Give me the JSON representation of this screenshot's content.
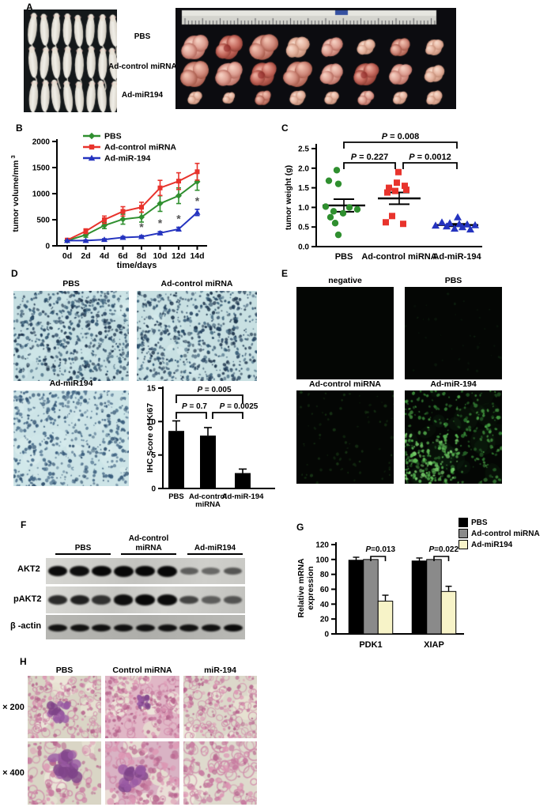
{
  "panels": {
    "a": "A",
    "b": "B",
    "c": "C",
    "d": "D",
    "e": "E",
    "f": "F",
    "g": "G",
    "h": "H"
  },
  "panel_a": {
    "treatment_labels": [
      "PBS",
      "Ad-control miRNA",
      "Ad-miR194"
    ],
    "tumor_rows": 3,
    "tumors_per_row": 8,
    "mice_rows": 3,
    "mice_per_row": 8
  },
  "chart_data": [
    {
      "panel": "B",
      "type": "line",
      "xlabel": "time/days",
      "ylabel": "tumor volume/mm",
      "ylabel_superscript": "3",
      "x": [
        "0d",
        "2d",
        "4d",
        "6d",
        "8d",
        "10d",
        "12d",
        "14d"
      ],
      "ylim": [
        0,
        2000
      ],
      "yticks": [
        0,
        500,
        1000,
        1500,
        2000
      ],
      "legend_position": "top-left",
      "series": [
        {
          "name": "PBS",
          "color": "#2f8f2f",
          "marker": "diamond",
          "values": [
            100,
            210,
            390,
            510,
            550,
            810,
            960,
            1230
          ],
          "errors": [
            20,
            45,
            60,
            95,
            95,
            150,
            150,
            165
          ]
        },
        {
          "name": "Ad-control miRNA",
          "color": "#e8332c",
          "marker": "square",
          "values": [
            110,
            280,
            500,
            660,
            740,
            1110,
            1240,
            1420
          ],
          "errors": [
            20,
            45,
            70,
            90,
            95,
            145,
            160,
            160
          ]
        },
        {
          "name": "Ad-miR-194",
          "color": "#2433bf",
          "marker": "triangle",
          "values": [
            100,
            100,
            120,
            160,
            175,
            245,
            320,
            640
          ],
          "errors": [
            10,
            12,
            15,
            20,
            22,
            28,
            35,
            60
          ]
        }
      ],
      "significance": {
        "symbol": "*",
        "series": "Ad-miR-194",
        "at_x": [
          "8d",
          "10d",
          "12d",
          "14d"
        ]
      }
    },
    {
      "panel": "C",
      "type": "scatter",
      "ylabel": "tumor weight (g)",
      "ylim": [
        0,
        2.5
      ],
      "yticks": [
        "0.0",
        "0.5",
        "1.0",
        "1.5",
        "2.0",
        "2.5"
      ],
      "groups": [
        {
          "name": "PBS",
          "color": "#2f8f2f",
          "marker": "circle",
          "mean": 1.05,
          "sem": 0.16,
          "points": [
            1.95,
            1.68,
            1.6,
            1.02,
            1.0,
            0.95,
            0.9,
            0.85,
            0.75,
            0.6,
            0.3
          ]
        },
        {
          "name": "Ad-control miRNA",
          "color": "#e8332c",
          "marker": "square",
          "mean": 1.23,
          "sem": 0.15,
          "points": [
            1.9,
            1.63,
            1.55,
            1.5,
            1.45,
            1.42,
            1.38,
            0.78,
            0.62,
            0.58
          ]
        },
        {
          "name": "Ad-miR-194",
          "color": "#2433bf",
          "marker": "triangle",
          "mean": 0.55,
          "sem": 0.03,
          "points": [
            0.75,
            0.62,
            0.6,
            0.58,
            0.57,
            0.55,
            0.54,
            0.52,
            0.5,
            0.46,
            0.44
          ]
        }
      ],
      "p_values": [
        {
          "label": "P = 0.008",
          "between": [
            0,
            2
          ]
        },
        {
          "label": "P = 0.227",
          "between": [
            0,
            1
          ]
        },
        {
          "label": "P = 0.0012",
          "between": [
            1,
            2
          ]
        }
      ]
    },
    {
      "panel": "D",
      "type": "bar",
      "ylabel": "IHC Score of Ki67",
      "ylim": [
        0,
        15
      ],
      "yticks": [
        0,
        5,
        10,
        15
      ],
      "categories": [
        "PBS",
        "Ad-control miRNA",
        "Ad-miR-194"
      ],
      "values": [
        8.6,
        7.9,
        2.3
      ],
      "errors": [
        1.5,
        1.2,
        0.6
      ],
      "bar_color": "#000000",
      "p_values": [
        {
          "label": "P = 0.005",
          "between": [
            0,
            2
          ]
        },
        {
          "label": "P = 0.7",
          "between": [
            0,
            1
          ]
        },
        {
          "label": "P = 0.0025",
          "between": [
            1,
            2
          ]
        }
      ]
    },
    {
      "panel": "G",
      "type": "bar",
      "grouped": true,
      "ylabel_lines": [
        "Relative mRNA",
        "expression"
      ],
      "ylim": [
        0,
        120
      ],
      "yticks": [
        0,
        20,
        40,
        60,
        80,
        100,
        120
      ],
      "categories": [
        "PDK1",
        "XIAP"
      ],
      "series": [
        {
          "name": "PBS",
          "color": "#000000",
          "values": [
            99,
            98
          ],
          "errors": [
            4,
            4
          ]
        },
        {
          "name": "Ad-control miRNA",
          "color": "#8a8a8a",
          "values": [
            100,
            100
          ],
          "errors": [
            0,
            0
          ]
        },
        {
          "name": "Ad-miR194",
          "color": "#f7f3c8",
          "values": [
            44,
            57
          ],
          "errors": [
            8,
            7
          ]
        }
      ],
      "p_values": [
        {
          "label": "P=0.013",
          "category": "PDK1",
          "between_series": [
            1,
            2
          ]
        },
        {
          "label": "P=0.022",
          "category": "XIAP",
          "between_series": [
            1,
            2
          ]
        }
      ]
    }
  ],
  "panel_d": {
    "image_labels": [
      "PBS",
      "Ad-control miRNA",
      "Ad-miR194"
    ]
  },
  "panel_e": {
    "image_labels": [
      "negative",
      "PBS",
      "Ad-control miRNA",
      "Ad-miR-194"
    ]
  },
  "panel_f": {
    "group_labels": [
      {
        "line1": "PBS",
        "line2": ""
      },
      {
        "line1": "Ad-control",
        "line2": "miRNA"
      },
      {
        "line1": "Ad-miR194",
        "line2": ""
      }
    ],
    "blots": [
      {
        "label": "AKT2",
        "band_intensities": [
          0.92,
          0.9,
          0.95,
          1,
          0.98,
          1,
          0.45,
          0.4,
          0.5
        ]
      },
      {
        "label": "pAKT2",
        "band_intensities": [
          0.75,
          0.8,
          0.7,
          0.9,
          0.95,
          0.92,
          0.6,
          0.45,
          0.5
        ]
      },
      {
        "label": "β -actin",
        "band_intensities": [
          0.88,
          0.88,
          0.88,
          0.88,
          0.88,
          0.88,
          0.88,
          0.88,
          0.92
        ]
      }
    ]
  },
  "panel_h": {
    "column_labels": [
      "PBS",
      "Control miRNA",
      "miR-194"
    ],
    "magnification_labels": [
      "× 200",
      "× 400"
    ]
  }
}
